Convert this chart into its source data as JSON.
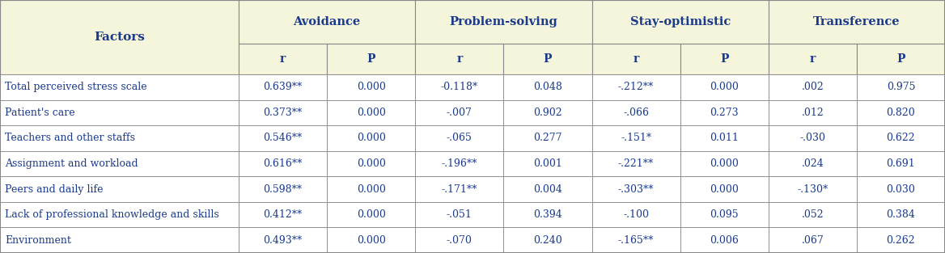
{
  "header_bg": "#f5f5dc",
  "header_text_color": "#1a3a8c",
  "cell_bg": "#ffffff",
  "cell_text_color": "#1a3a8c",
  "border_color": "#888888",
  "col_groups": [
    "Avoidance",
    "Problem-solving",
    "Stay-optimistic",
    "Transference"
  ],
  "sub_headers": [
    "r",
    "P"
  ],
  "row_labels": [
    "Total perceived stress scale",
    "Patient's care",
    "Teachers and other staffs",
    "Assignment and workload",
    "Peers and daily life",
    "Lack of professional knowledge and skills",
    "Environment"
  ],
  "data": [
    [
      "0.639**",
      "0.000",
      "-0.118*",
      "0.048",
      "-.212**",
      "0.000",
      ".002",
      "0.975"
    ],
    [
      "0.373**",
      "0.000",
      "-.007",
      "0.902",
      "-.066",
      "0.273",
      ".012",
      "0.820"
    ],
    [
      "0.546**",
      "0.000",
      "-.065",
      "0.277",
      "-.151*",
      "0.011",
      "-.030",
      "0.622"
    ],
    [
      "0.616**",
      "0.000",
      "-.196**",
      "0.001",
      "-.221**",
      "0.000",
      ".024",
      "0.691"
    ],
    [
      "0.598**",
      "0.000",
      "-.171**",
      "0.004",
      "-.303**",
      "0.000",
      "-.130*",
      "0.030"
    ],
    [
      "0.412**",
      "0.000",
      "-.051",
      "0.394",
      "-.100",
      "0.095",
      ".052",
      "0.384"
    ],
    [
      "0.493**",
      "0.000",
      "-.070",
      "0.240",
      "-.165**",
      "0.006",
      ".067",
      "0.262"
    ]
  ],
  "factor_col_label": "Factors",
  "figure_bg": "#fafae8",
  "figure_width": 11.68,
  "figure_height": 3.13,
  "dpi": 100
}
